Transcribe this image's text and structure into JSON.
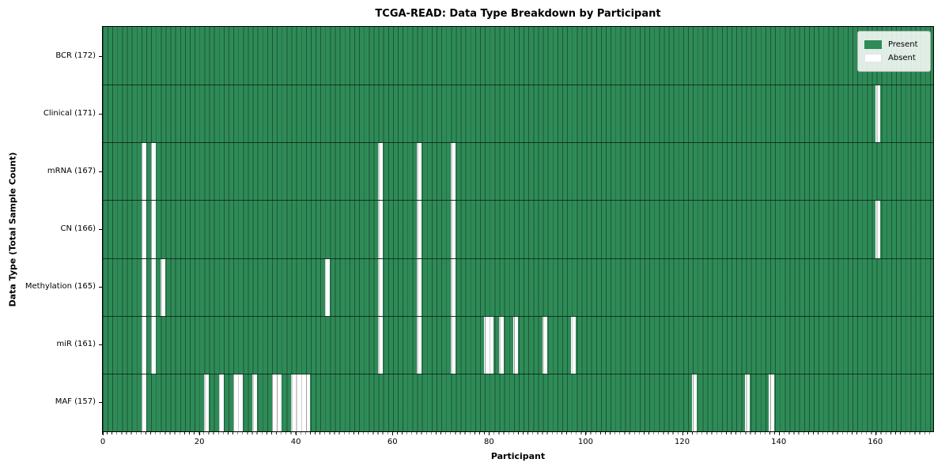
{
  "title": "TCGA-READ: Data Type Breakdown by Participant",
  "xlabel": "Participant",
  "ylabel": "Data Type (Total Sample Count)",
  "legend": {
    "present_label": "Present",
    "absent_label": "Absent"
  },
  "colors": {
    "present": "#2E8B57",
    "absent": "#FFFFFF"
  },
  "chart_data": {
    "type": "heatmap",
    "x": "participant index",
    "n_participants": 172,
    "xlim": [
      0,
      172
    ],
    "x_ticks": [
      0,
      20,
      40,
      60,
      80,
      100,
      120,
      140,
      160
    ],
    "grid": "per-cell vertical lines, black row separators",
    "legend_position": "upper right",
    "rows": [
      {
        "label": "BCR (172)",
        "data_type": "BCR",
        "present_count": 172,
        "absent_participants": []
      },
      {
        "label": "Clinical (171)",
        "data_type": "Clinical",
        "present_count": 171,
        "absent_participants": [
          160
        ]
      },
      {
        "label": "mRNA (167)",
        "data_type": "mRNA",
        "present_count": 167,
        "absent_participants": [
          8,
          10,
          57,
          65,
          72
        ]
      },
      {
        "label": "CN (166)",
        "data_type": "CN",
        "present_count": 166,
        "absent_participants": [
          8,
          10,
          57,
          65,
          72,
          160
        ]
      },
      {
        "label": "Methylation (165)",
        "data_type": "Methylation",
        "present_count": 165,
        "absent_participants": [
          8,
          10,
          12,
          46,
          57,
          65,
          72
        ]
      },
      {
        "label": "miR (161)",
        "data_type": "miR",
        "present_count": 161,
        "absent_participants": [
          8,
          10,
          57,
          65,
          72,
          79,
          80,
          82,
          85,
          91,
          97
        ]
      },
      {
        "label": "MAF (157)",
        "data_type": "MAF",
        "present_count": 157,
        "absent_participants": [
          8,
          21,
          24,
          27,
          28,
          31,
          35,
          36,
          39,
          40,
          41,
          42,
          122,
          133,
          138
        ]
      }
    ]
  }
}
